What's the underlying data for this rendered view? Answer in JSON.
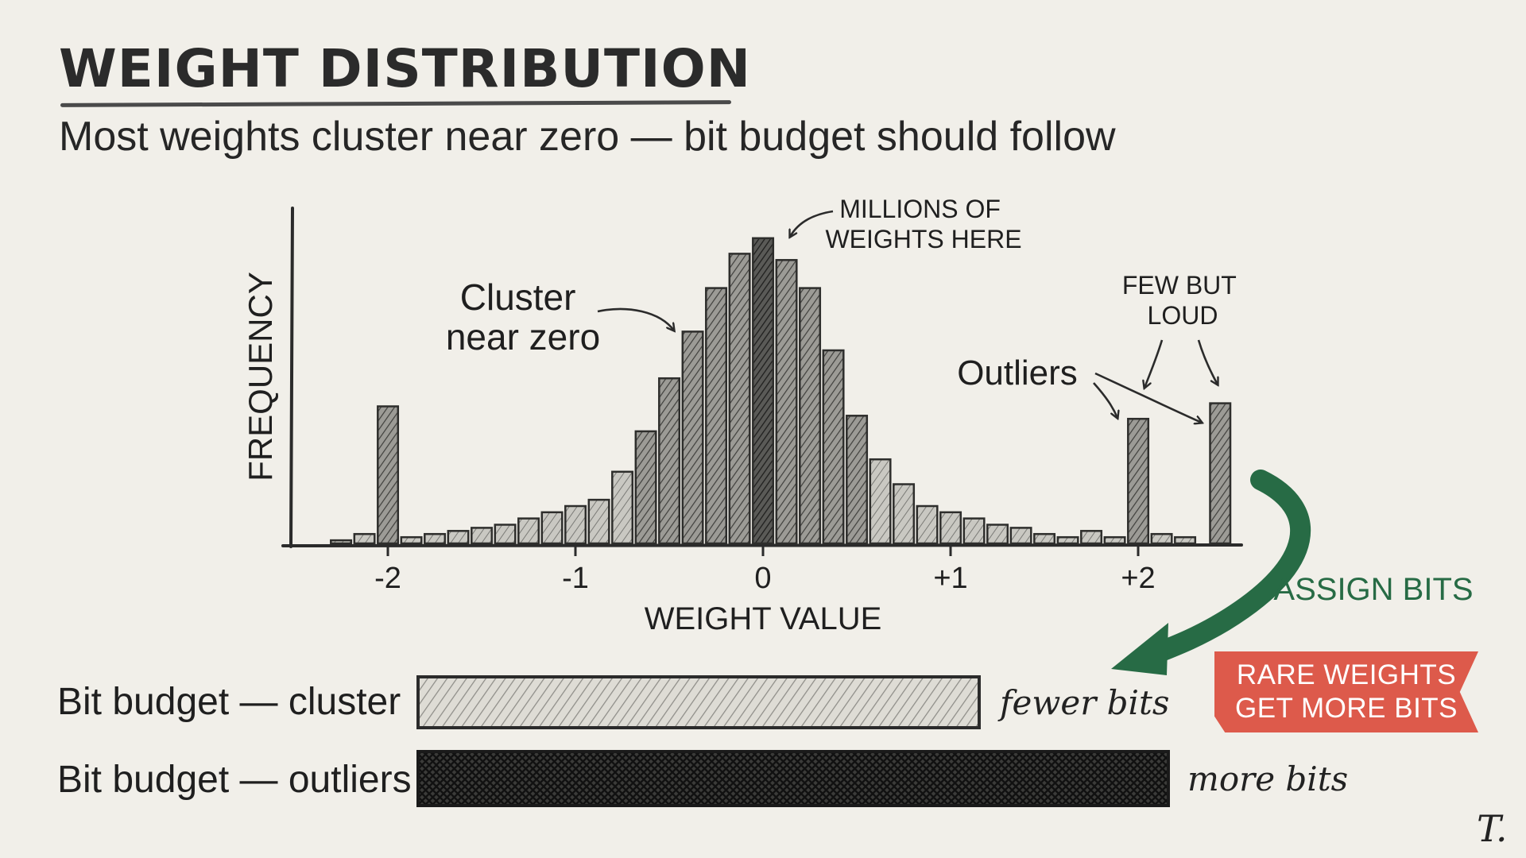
{
  "header": {
    "title": "WEIGHT DISTRIBUTION",
    "subtitle": "Most weights cluster near zero — bit budget should follow"
  },
  "chart_data": {
    "type": "bar",
    "xlabel": "WEIGHT VALUE",
    "ylabel": "FREQUENCY",
    "xticks": [
      {
        "value": -2,
        "label": "-2"
      },
      {
        "value": -1,
        "label": "-1"
      },
      {
        "value": 0,
        "label": "0"
      },
      {
        "value": 1,
        "label": "+1"
      },
      {
        "value": 2,
        "label": "+2"
      }
    ],
    "xlim": [
      -2.4,
      2.5
    ],
    "ylim": [
      0,
      100
    ],
    "bar_width": 0.125,
    "bins": [
      {
        "x": -2.25,
        "y": 1
      },
      {
        "x": -2.125,
        "y": 3
      },
      {
        "x": -2.0,
        "y": 44
      },
      {
        "x": -1.875,
        "y": 2
      },
      {
        "x": -1.75,
        "y": 3
      },
      {
        "x": -1.625,
        "y": 4
      },
      {
        "x": -1.5,
        "y": 5
      },
      {
        "x": -1.375,
        "y": 6
      },
      {
        "x": -1.25,
        "y": 8
      },
      {
        "x": -1.125,
        "y": 10
      },
      {
        "x": -1.0,
        "y": 12
      },
      {
        "x": -0.875,
        "y": 14
      },
      {
        "x": -0.75,
        "y": 23
      },
      {
        "x": -0.625,
        "y": 36
      },
      {
        "x": -0.5,
        "y": 53
      },
      {
        "x": -0.375,
        "y": 68
      },
      {
        "x": -0.25,
        "y": 82
      },
      {
        "x": -0.125,
        "y": 93
      },
      {
        "x": 0.0,
        "y": 98
      },
      {
        "x": 0.125,
        "y": 91
      },
      {
        "x": 0.25,
        "y": 82
      },
      {
        "x": 0.375,
        "y": 62
      },
      {
        "x": 0.5,
        "y": 41
      },
      {
        "x": 0.625,
        "y": 27
      },
      {
        "x": 0.75,
        "y": 19
      },
      {
        "x": 0.875,
        "y": 12
      },
      {
        "x": 1.0,
        "y": 10
      },
      {
        "x": 1.125,
        "y": 8
      },
      {
        "x": 1.25,
        "y": 6
      },
      {
        "x": 1.375,
        "y": 5
      },
      {
        "x": 1.5,
        "y": 3
      },
      {
        "x": 1.625,
        "y": 2
      },
      {
        "x": 1.75,
        "y": 4
      },
      {
        "x": 1.875,
        "y": 2
      },
      {
        "x": 2.0,
        "y": 40
      },
      {
        "x": 2.125,
        "y": 3
      },
      {
        "x": 2.25,
        "y": 2
      },
      {
        "x": 2.4375,
        "y": 45
      }
    ],
    "annotations": {
      "cluster": "Cluster near zero",
      "millions": "MILLIONS OF WEIGHTS HERE",
      "few_but_loud": "FEW BUT LOUD",
      "outliers": "Outliers"
    }
  },
  "bit_budget": {
    "assign_label": "ASSIGN BITS",
    "cluster_label": "Bit budget — cluster",
    "cluster_note": "fewer bits",
    "outlier_label": "Bit budget — outliers",
    "outlier_note": "more bits",
    "callout": "RARE WEIGHTS GET MORE BITS",
    "callout_line1": "RARE WEIGHTS",
    "callout_line2": "GET MORE BITS"
  },
  "signature": "T.",
  "colors": {
    "background": "#f1efe9",
    "ink": "#2b2b2b",
    "bar_light": "#bdbdb6",
    "bar_dark": "#4a4a47",
    "accent_green": "#276b45",
    "accent_red": "#dd5a4b"
  }
}
